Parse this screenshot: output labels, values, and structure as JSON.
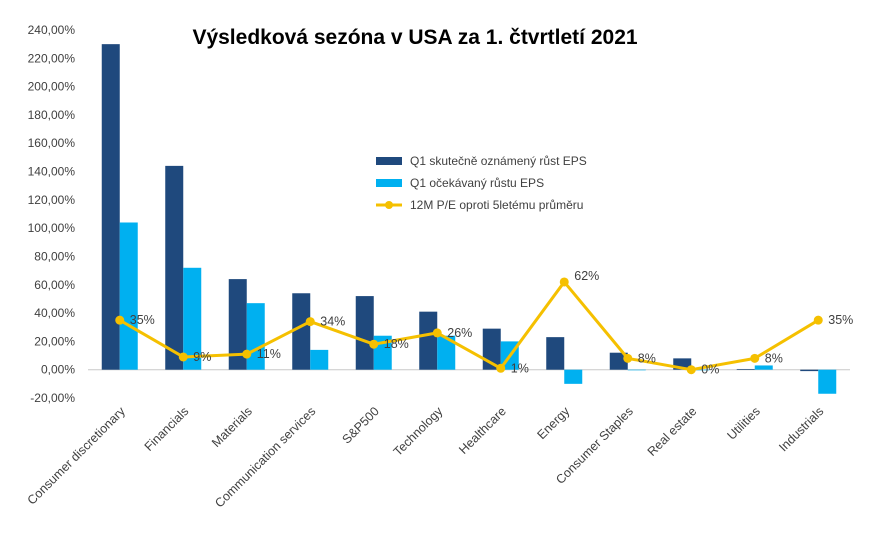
{
  "chart_data": {
    "type": "bar",
    "title": "Výsledková sezóna v USA za 1. čtvrtletí 2021",
    "categories": [
      "Consumer discretionary",
      "Financials",
      "Materials",
      "Communication services",
      "S&P500",
      "Technology",
      "Healthcare",
      "Energy",
      "Consumer Staples",
      "Real estate",
      "Utilities",
      "Industrials"
    ],
    "series": [
      {
        "name": "Q1 skutečně oznámený růst EPS",
        "type": "bar",
        "color": "#1f497d",
        "values": [
          230,
          144,
          64,
          54,
          52,
          41,
          29,
          23,
          12,
          8,
          0.5,
          -1
        ]
      },
      {
        "name": "Q1 očekávaný růstu EPS",
        "type": "bar",
        "color": "#00b0f0",
        "values": [
          104,
          72,
          47,
          14,
          24,
          24,
          20,
          -10,
          0,
          0,
          3,
          -17
        ]
      },
      {
        "name": "12M P/E oproti 5letému průměru",
        "type": "line",
        "color": "#f5c000",
        "values": [
          35,
          9,
          11,
          34,
          18,
          26,
          1,
          62,
          8,
          0,
          8,
          35
        ],
        "labels": [
          "35%",
          "9%",
          "11%",
          "34%",
          "18%",
          "26%",
          "1%",
          "62%",
          "8%",
          "0%",
          "8%",
          "35%"
        ]
      }
    ],
    "ylim": [
      -20,
      240
    ],
    "yticks": [
      -20,
      0,
      20,
      40,
      60,
      80,
      100,
      120,
      140,
      160,
      180,
      200,
      220,
      240
    ],
    "ytick_labels": [
      "-20,00%",
      "0,00%",
      "20,00%",
      "40,00%",
      "60,00%",
      "80,00%",
      "100,00%",
      "120,00%",
      "140,00%",
      "160,00%",
      "180,00%",
      "200,00%",
      "220,00%",
      "240,00%"
    ],
    "grid": false,
    "legend_position": "upper-right"
  }
}
